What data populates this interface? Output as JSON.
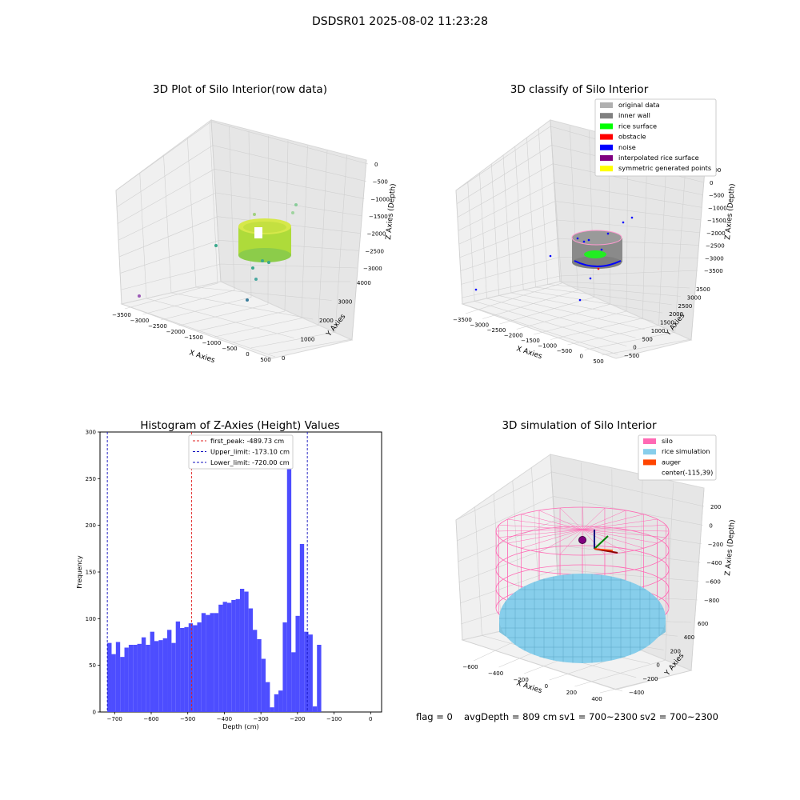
{
  "suptitle": "DSDSR01 2025-08-02 11:23:28",
  "colors": {
    "hist_bar": "#4d4dff",
    "peak_line": "#e02020",
    "limit_line": "#1515c0",
    "silo": "#ff69b4",
    "rice": "#87ceeb",
    "auger": "#ff4500",
    "inner_wall": "#808080",
    "rice_surface": "#00ff00",
    "obstacle": "#ff0000",
    "noise": "#0000ff",
    "interp": "#800080",
    "symmetric": "#ffff00",
    "original": "#b0b0b0"
  },
  "chart_data": [
    {
      "type": "scatter",
      "title": "3D Plot of Silo Interior(row data)",
      "xlabel": "X Axies",
      "ylabel": "Y Axies",
      "zlabel": "Z Axies (Depth)",
      "xticks": [
        "−3500",
        "−3000",
        "−2500",
        "−2000",
        "−1500",
        "−1000",
        "−500",
        "0",
        "500"
      ],
      "yticks": [
        "0",
        "1000",
        "2000",
        "3000",
        "4000"
      ],
      "zticks": [
        "0",
        "−500",
        "−1000",
        "−1500",
        "−2000",
        "−2500",
        "−3000"
      ]
    },
    {
      "type": "scatter",
      "title": "3D classify of Silo Interior",
      "xlabel": "X Axies",
      "ylabel": "Y Axies",
      "zlabel": "Z Axies (Depth)",
      "xticks": [
        "−3500",
        "−3000",
        "−2500",
        "−2000",
        "−1500",
        "−1000",
        "−500",
        "0",
        "500"
      ],
      "yticks": [
        "−500",
        "0",
        "500",
        "1000",
        "1500",
        "2000",
        "2500",
        "3000",
        "3500"
      ],
      "zticks": [
        "500",
        "0",
        "−500",
        "−1000",
        "−1500",
        "−2000",
        "−2500",
        "−3000",
        "−3500"
      ],
      "legend": [
        {
          "label": "original data",
          "color": "#b0b0b0"
        },
        {
          "label": "inner wall",
          "color": "#808080"
        },
        {
          "label": "rice surface",
          "color": "#00ff00"
        },
        {
          "label": "obstacle",
          "color": "#ff0000"
        },
        {
          "label": "noise",
          "color": "#0000ff"
        },
        {
          "label": "interpolated rice surface",
          "color": "#800080"
        },
        {
          "label": "symmetric generated points",
          "color": "#ffff00"
        }
      ],
      "legend_position": "top-right"
    },
    {
      "type": "bar",
      "title": "Histogram of Z-Axies (Height) Values",
      "xlabel": "Depth (cm)",
      "ylabel": "Frequency",
      "xlim": [
        -740,
        30
      ],
      "ylim": [
        0,
        300
      ],
      "xticks": [
        -700,
        -600,
        -500,
        -400,
        -300,
        -200,
        -100,
        0
      ],
      "yticks": [
        0,
        50,
        100,
        150,
        200,
        250,
        300
      ],
      "bin_start": -720,
      "bin_width": 11.7,
      "values": [
        74,
        62,
        75,
        59,
        69,
        72,
        72,
        73,
        80,
        72,
        86,
        76,
        77,
        79,
        88,
        74,
        97,
        90,
        91,
        95,
        93,
        96,
        106,
        104,
        106,
        106,
        115,
        118,
        117,
        120,
        121,
        132,
        129,
        111,
        88,
        78,
        57,
        32,
        5,
        19,
        23,
        96,
        287,
        64,
        103,
        180,
        86,
        83,
        6,
        72
      ],
      "lines": [
        {
          "label": "first_peak: -489.73 cm",
          "x": -489.73,
          "color": "#e02020"
        },
        {
          "label": "Upper_limit: -173.10 cm",
          "x": -173.1,
          "color": "#1515c0"
        },
        {
          "label": "Lower_limit: -720.00 cm",
          "x": -720.0,
          "color": "#1515c0"
        }
      ],
      "legend_position": "top-center"
    },
    {
      "type": "scatter",
      "title": "3D simulation of Silo Interior",
      "xlabel": "X Axies",
      "ylabel": "Y Axies",
      "zlabel": "Z Axies (Depth)",
      "xticks": [
        "−600",
        "−400",
        "−200",
        "0",
        "200",
        "400"
      ],
      "yticks": [
        "−400",
        "−200",
        "0",
        "200",
        "400",
        "600"
      ],
      "zticks": [
        "200",
        "0",
        "−200",
        "−400",
        "−600",
        "−800"
      ],
      "legend": [
        {
          "label": "silo",
          "color": "#ff69b4"
        },
        {
          "label": "rice simulation",
          "color": "#87ceeb"
        },
        {
          "label": "auger",
          "color": "#ff4500"
        },
        {
          "label": "center(-115,39)",
          "color": ""
        }
      ],
      "legend_position": "top-right"
    }
  ],
  "footer": {
    "flag": "flag = 0",
    "avg": "avgDepth = 809 cm",
    "sv1": "sv1 = 700~2300",
    "sv2": "sv2 = 700~2300"
  }
}
